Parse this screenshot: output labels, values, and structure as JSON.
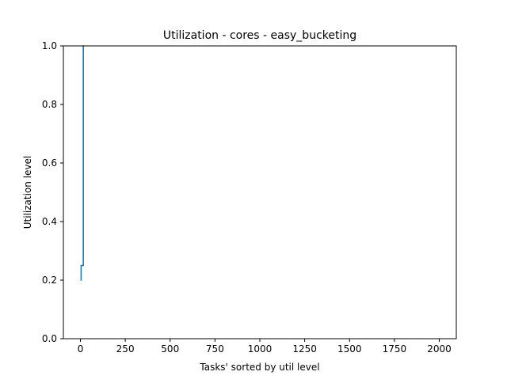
{
  "chart_data": {
    "type": "line",
    "title": "Utilization - cores - easy_bucketing",
    "xlabel": "Tasks' sorted by util level",
    "ylabel": "Utilization level",
    "xlim": [
      -95,
      2095
    ],
    "ylim": [
      0.0,
      1.0
    ],
    "xticks": [
      0,
      250,
      500,
      750,
      1000,
      1250,
      1500,
      1750,
      2000
    ],
    "yticks": [
      0.0,
      0.2,
      0.4,
      0.6,
      0.8,
      1.0
    ],
    "xtick_labels": [
      "0",
      "250",
      "500",
      "750",
      "1000",
      "1250",
      "1500",
      "1750",
      "2000"
    ],
    "ytick_labels": [
      "0.0",
      "0.2",
      "0.4",
      "0.6",
      "0.8",
      "1.0"
    ],
    "grid": false,
    "series": [
      {
        "color": "#1f77b4",
        "x": [
          0,
          4,
          4,
          16,
          16,
          20
        ],
        "y": [
          0.2,
          0.2,
          0.25,
          0.25,
          1.0,
          1.0
        ]
      }
    ]
  }
}
